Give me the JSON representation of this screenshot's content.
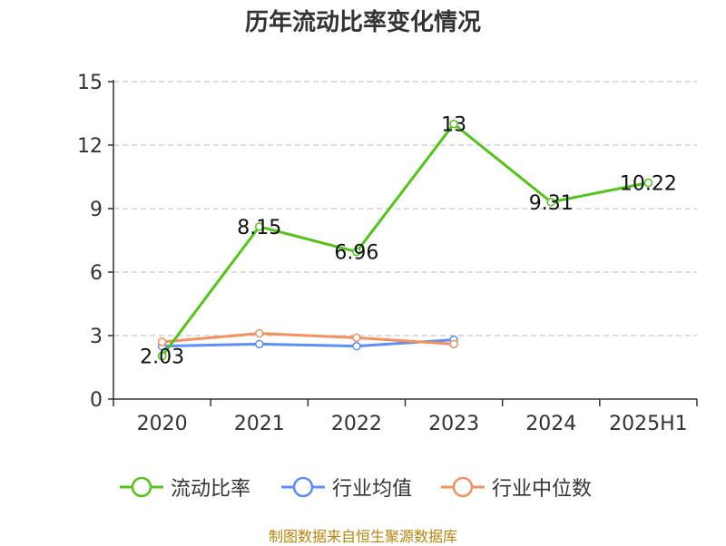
{
  "colors": {
    "series": [
      "#52c41a",
      "#5b8ff9",
      "#f6905e"
    ],
    "grid": "#bbbbbb",
    "axis": "#333333",
    "source": "#b8860b"
  },
  "chart_data": {
    "type": "line",
    "title": "历年流动比率变化情况",
    "xlabel": "",
    "ylabel": "",
    "categories": [
      "2020",
      "2021",
      "2022",
      "2023",
      "2024",
      "2025H1"
    ],
    "ylim": [
      0,
      15
    ],
    "yticks": [
      0,
      3,
      6,
      9,
      12,
      15
    ],
    "grid": true,
    "legend_position": "bottom",
    "series": [
      {
        "name": "流动比率",
        "values": [
          2.03,
          8.15,
          6.96,
          13,
          9.31,
          10.22
        ],
        "labels": [
          "2.03",
          "8.15",
          "6.96",
          "13",
          "9.31",
          "10.22"
        ]
      },
      {
        "name": "行业均值",
        "values": [
          2.5,
          2.6,
          2.5,
          2.8,
          null,
          null
        ]
      },
      {
        "name": "行业中位数",
        "values": [
          2.7,
          3.1,
          2.9,
          2.6,
          null,
          null
        ]
      }
    ]
  },
  "source_text": "制图数据来自恒生聚源数据库"
}
